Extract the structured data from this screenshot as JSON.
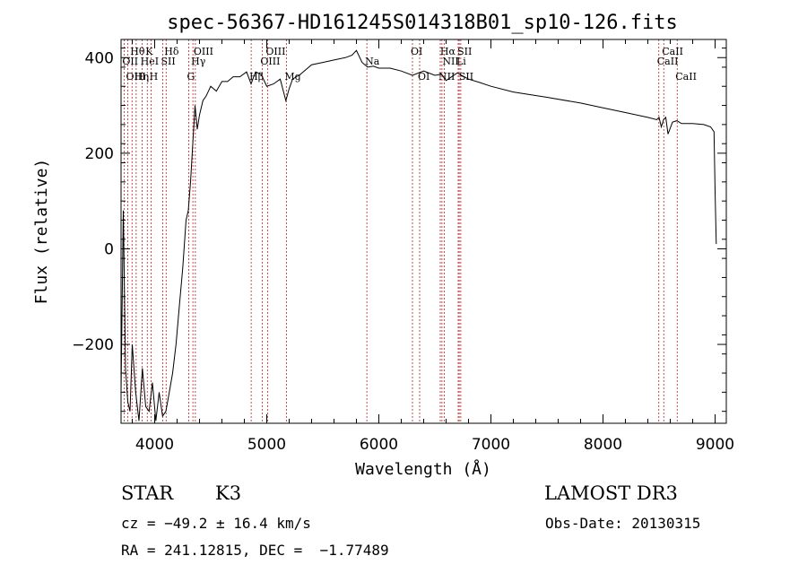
{
  "chart_data": {
    "type": "line",
    "title": "spec-56367-HD161245S014318B01_sp10-126.fits",
    "xlabel": "Wavelength (Å)",
    "ylabel": "Flux (relative)",
    "xlim": [
      3700,
      9100
    ],
    "ylim": [
      -365,
      438
    ],
    "xticks": [
      4000,
      5000,
      6000,
      7000,
      8000,
      9000
    ],
    "xtick_labels": [
      "4000",
      "5000",
      "6000",
      "7000",
      "8000",
      "9000"
    ],
    "yticks": [
      -200,
      0,
      200,
      400
    ],
    "ytick_labels": [
      "−200",
      "0",
      "200",
      "400"
    ],
    "grid": false,
    "series": [
      {
        "x": [
          3700,
          3720,
          3740,
          3760,
          3780,
          3800,
          3830,
          3860,
          3890,
          3920,
          3950,
          3980,
          4010,
          4040,
          4070,
          4100,
          4130,
          4160,
          4190,
          4220,
          4250,
          4280,
          4300,
          4320,
          4340,
          4360,
          4380,
          4400,
          4430,
          4460,
          4500,
          4550,
          4600,
          4650,
          4700,
          4760,
          4820,
          4860,
          4900,
          4950,
          5000,
          5060,
          5120,
          5170,
          5200,
          5230,
          5300,
          5400,
          5500,
          5600,
          5700,
          5760,
          5800,
          5850,
          5900,
          5950,
          6000,
          6100,
          6200,
          6300,
          6400,
          6500,
          6560,
          6600,
          6700,
          6800,
          6900,
          7000,
          7200,
          7500,
          7800,
          8000,
          8200,
          8400,
          8480,
          8500,
          8520,
          8540,
          8560,
          8580,
          8620,
          8660,
          8700,
          8800,
          8900,
          8960,
          8990,
          9000,
          9010
        ],
        "y": [
          -300,
          80,
          -250,
          -320,
          -340,
          -200,
          -300,
          -360,
          -250,
          -330,
          -340,
          -280,
          -360,
          -300,
          -350,
          -340,
          -300,
          -260,
          -200,
          -120,
          -40,
          60,
          80,
          140,
          220,
          300,
          250,
          280,
          310,
          320,
          340,
          330,
          350,
          350,
          360,
          360,
          370,
          345,
          370,
          365,
          340,
          345,
          355,
          310,
          335,
          355,
          365,
          385,
          390,
          395,
          400,
          405,
          415,
          390,
          380,
          382,
          378,
          378,
          372,
          363,
          372,
          363,
          365,
          352,
          368,
          355,
          348,
          340,
          328,
          317,
          305,
          295,
          285,
          275,
          270,
          275,
          255,
          270,
          275,
          240,
          265,
          268,
          262,
          262,
          260,
          255,
          245,
          120,
          10
        ]
      }
    ],
    "line_markers": [
      {
        "label": "Hθ",
        "x": 3798,
        "row": 1
      },
      {
        "label": "OII",
        "x": 3727,
        "row": 2
      },
      {
        "label": "OIII",
        "x": 3760,
        "row": 3
      },
      {
        "label": "Hη",
        "x": 3835,
        "row": 3
      },
      {
        "label": "K",
        "x": 3934,
        "row": 1
      },
      {
        "label": "HeI",
        "x": 3889,
        "row": 2
      },
      {
        "label": "H",
        "x": 3969,
        "row": 3
      },
      {
        "label": "Hδ",
        "x": 4102,
        "row": 1
      },
      {
        "label": "SII",
        "x": 4072,
        "row": 2
      },
      {
        "label": "OIII",
        "x": 4363,
        "row": 1
      },
      {
        "label": "Hγ",
        "x": 4341,
        "row": 2
      },
      {
        "label": "G",
        "x": 4304,
        "row": 3
      },
      {
        "label": "OIII",
        "x": 5007,
        "row": 1
      },
      {
        "label": "OIII",
        "x": 4959,
        "row": 2
      },
      {
        "label": "Hβ",
        "x": 4861,
        "row": 3
      },
      {
        "label": "Mg",
        "x": 5175,
        "row": 3
      },
      {
        "label": "Na",
        "x": 5893,
        "row": 2
      },
      {
        "label": "OI",
        "x": 6300,
        "row": 1
      },
      {
        "label": "OI",
        "x": 6364,
        "row": 3
      },
      {
        "label": "Hα",
        "x": 6563,
        "row": 1
      },
      {
        "label": "NII",
        "x": 6583,
        "row": 2
      },
      {
        "label": "NII",
        "x": 6548,
        "row": 3
      },
      {
        "label": "SII",
        "x": 6717,
        "row": 1
      },
      {
        "label": "Li",
        "x": 6708,
        "row": 2
      },
      {
        "label": "SII",
        "x": 6731,
        "row": 3
      },
      {
        "label": "CaII",
        "x": 8542,
        "row": 1
      },
      {
        "label": "CaII",
        "x": 8498,
        "row": 2
      },
      {
        "label": "CaII",
        "x": 8662,
        "row": 3
      }
    ]
  },
  "info": {
    "object_type": "STAR",
    "subclass": "K3",
    "survey": "LAMOST DR3",
    "redshift": "cz = −49.2 ± 16.4 km/s",
    "obs_date": "Obs-Date: 20130315",
    "coords": "RA = 241.12815, DEC =  −1.77489"
  },
  "colors": {
    "line_marker": "#b22222",
    "spectrum": "#000000",
    "axes": "#000000"
  }
}
